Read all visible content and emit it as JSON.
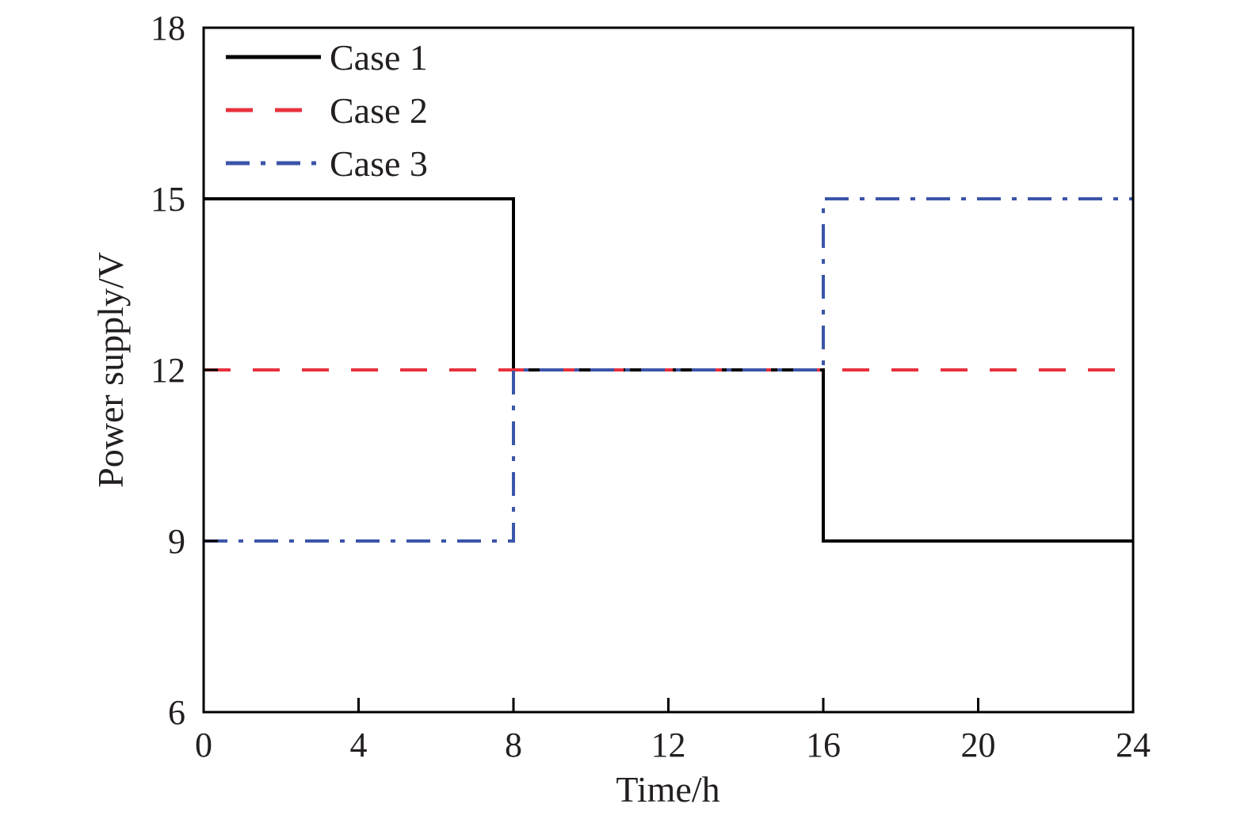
{
  "chart_data": {
    "type": "line",
    "xlabel": "Time/h",
    "ylabel": "Power supply/V",
    "xlim": [
      0,
      24
    ],
    "ylim": [
      6,
      18
    ],
    "xticks": [
      0,
      4,
      8,
      12,
      16,
      20,
      24
    ],
    "yticks": [
      6,
      9,
      12,
      15,
      18
    ],
    "grid": false,
    "legend_position": "top-left",
    "series": [
      {
        "name": "Case 1",
        "color": "#000000",
        "style": "solid",
        "x": [
          0,
          8,
          8,
          16,
          16,
          24
        ],
        "y": [
          15,
          15,
          12,
          12,
          9,
          9
        ]
      },
      {
        "name": "Case 2",
        "color": "#e8303c",
        "style": "dashed",
        "x": [
          0,
          24
        ],
        "y": [
          12,
          12
        ]
      },
      {
        "name": "Case 3",
        "color": "#3b55a8",
        "style": "dashdot",
        "x": [
          0,
          8,
          8,
          16,
          16,
          24
        ],
        "y": [
          9,
          9,
          12,
          12,
          15,
          15
        ]
      }
    ]
  }
}
